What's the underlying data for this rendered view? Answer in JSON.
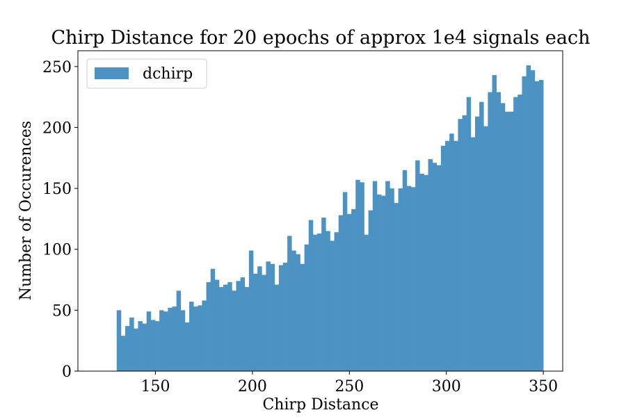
{
  "chart_data": {
    "type": "bar",
    "title": "Chirp Distance for 20 epochs of approx 1e4 signals each",
    "xlabel": "Chirp Distance",
    "ylabel": "Number of Occurences",
    "xlim": [
      110,
      360
    ],
    "ylim": [
      0,
      263
    ],
    "bin_start": 130,
    "bin_end": 350,
    "xticks": [
      150,
      200,
      250,
      300,
      350
    ],
    "yticks": [
      0,
      50,
      100,
      150,
      200,
      250
    ],
    "grid": false,
    "legend_position": "top-left",
    "color": "#4c92c3",
    "series": [
      {
        "name": "dchirp",
        "values": [
          50,
          29,
          37,
          44,
          35,
          41,
          39,
          49,
          42,
          41,
          50,
          49,
          52,
          53,
          66,
          50,
          40,
          57,
          53,
          54,
          58,
          73,
          84,
          75,
          69,
          71,
          73,
          66,
          74,
          77,
          69,
          99,
          80,
          86,
          79,
          90,
          88,
          71,
          87,
          89,
          111,
          99,
          96,
          88,
          104,
          124,
          112,
          113,
          126,
          115,
          107,
          114,
          128,
          147,
          129,
          133,
          157,
          155,
          112,
          132,
          156,
          145,
          144,
          156,
          150,
          138,
          150,
          165,
          152,
          151,
          173,
          162,
          161,
          174,
          171,
          169,
          185,
          189,
          195,
          189,
          207,
          210,
          225,
          192,
          209,
          221,
          201,
          229,
          243,
          229,
          220,
          213,
          213,
          225,
          227,
          242,
          251,
          247,
          238,
          239
        ]
      }
    ]
  }
}
